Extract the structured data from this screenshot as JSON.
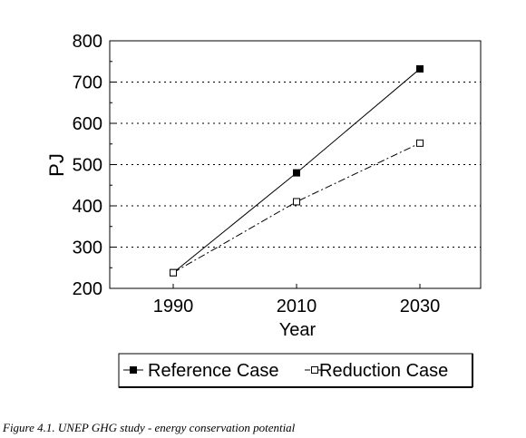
{
  "caption": "Figure 4.1. UNEP GHG study - energy conservation potential",
  "chart_data": {
    "type": "line",
    "title": "",
    "xlabel": "Year",
    "ylabel": "PJ",
    "categories": [
      "1990",
      "2010",
      "2030"
    ],
    "ylim": [
      200,
      800
    ],
    "yticks": [
      200,
      300,
      400,
      500,
      600,
      700,
      800
    ],
    "grid": "horizontal-dotted",
    "legend_position": "bottom",
    "series": [
      {
        "name": "Reference Case",
        "values": [
          238,
          480,
          732
        ],
        "marker": "filled-square",
        "line": "solid",
        "color": "#000000"
      },
      {
        "name": "Reduction Case",
        "values": [
          238,
          410,
          552
        ],
        "marker": "hollow-square",
        "line": "dash-dot",
        "color": "#000000"
      }
    ]
  }
}
